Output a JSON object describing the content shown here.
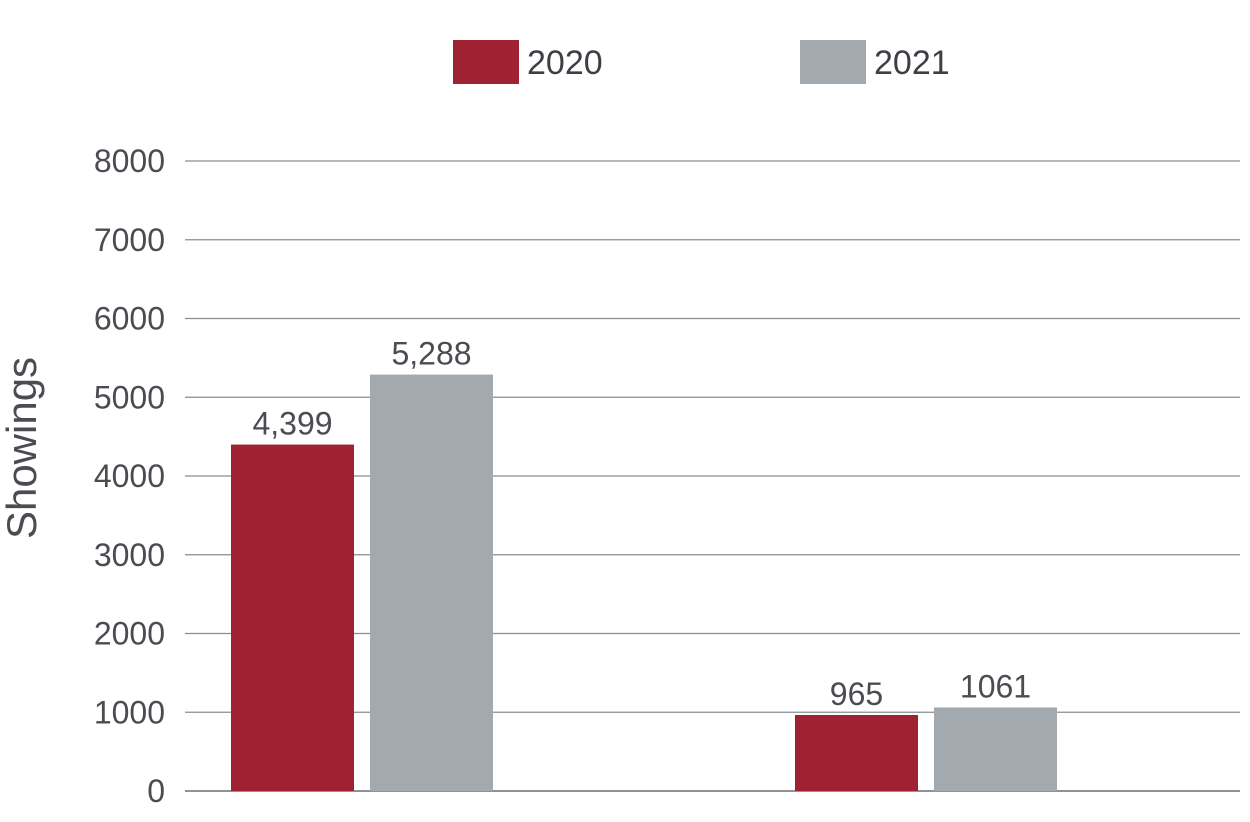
{
  "chart_data": {
    "type": "bar",
    "title": "",
    "xlabel": "",
    "ylabel": "Showings",
    "categories": [
      "",
      ""
    ],
    "ylim": [
      0,
      8000
    ],
    "yticks": [
      0,
      1000,
      2000,
      3000,
      4000,
      5000,
      6000,
      7000,
      8000
    ],
    "grid": true,
    "legend_position": "top-center",
    "series": [
      {
        "name": "2020",
        "color": "#9e2232",
        "values": [
          4399,
          965
        ],
        "labels": [
          "4,399",
          "965"
        ]
      },
      {
        "name": "2021",
        "color": "#a2aab0",
        "values": [
          5288,
          1061
        ],
        "labels": [
          "5,288",
          "1061"
        ]
      }
    ]
  }
}
